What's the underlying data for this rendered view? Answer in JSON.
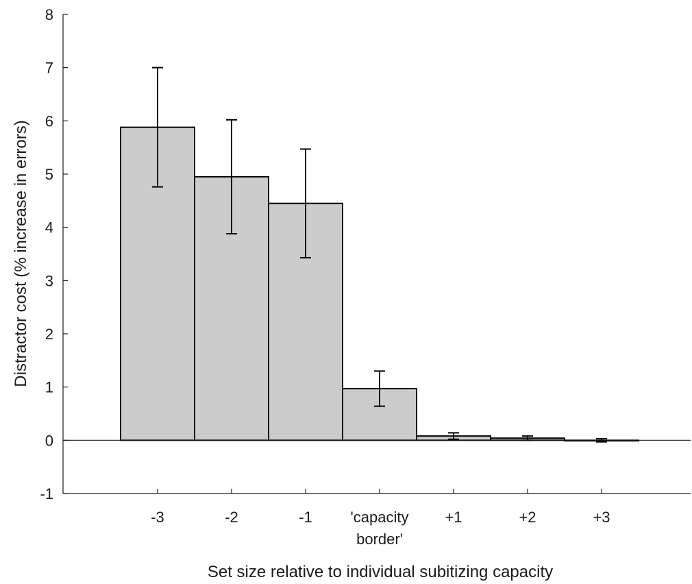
{
  "chart_data": {
    "type": "bar",
    "title": "",
    "xlabel": "Set size relative to individual subitizing capacity",
    "ylabel": "Distractor cost (% increase in errors)",
    "ylim": [
      -1,
      8
    ],
    "yticks": [
      -1,
      0,
      1,
      2,
      3,
      4,
      5,
      6,
      7,
      8
    ],
    "grid": false,
    "legend": "none",
    "categories": [
      [
        "-3"
      ],
      [
        "-2"
      ],
      [
        "-1"
      ],
      [
        "'capacity",
        "border'"
      ],
      [
        "+1"
      ],
      [
        "+2"
      ],
      [
        "+3"
      ]
    ],
    "values": [
      5.88,
      4.95,
      4.45,
      0.97,
      0.08,
      0.04,
      0.0
    ],
    "error": [
      1.12,
      1.07,
      1.02,
      0.33,
      0.06,
      0.04,
      0.03
    ],
    "colors": {
      "bar_fill": "#cccccc",
      "bar_stroke": "#000000",
      "axis": "#1a1a1a"
    }
  }
}
